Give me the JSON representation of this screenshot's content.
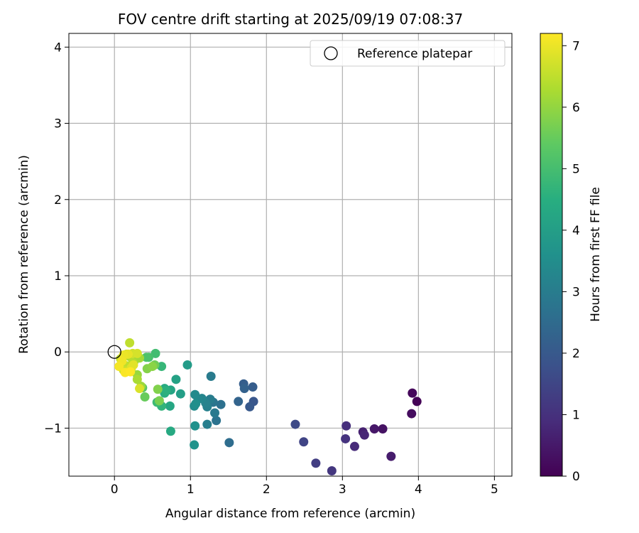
{
  "chart_data": {
    "type": "scatter",
    "title": "FOV centre drift starting at 2025/09/19 07:08:37",
    "xlabel": "Angular distance from reference (arcmin)",
    "ylabel": "Rotation from reference (arcmin)",
    "xlim": [
      -0.6,
      5.23
    ],
    "ylim": [
      -1.63,
      4.18
    ],
    "xticks": [
      "0",
      "1",
      "2",
      "3",
      "4",
      "5"
    ],
    "xtick_values": [
      0,
      1,
      2,
      3,
      4,
      5
    ],
    "yticks": [
      "−1",
      "0",
      "1",
      "2",
      "3",
      "4"
    ],
    "ytick_values": [
      -1,
      0,
      1,
      2,
      3,
      4
    ],
    "grid": true,
    "legend": {
      "position": "top-right",
      "entries": [
        {
          "label": "Reference platepar",
          "marker": "open-circle"
        }
      ]
    },
    "reference_point": {
      "x": 0,
      "y": 0
    },
    "colorbar": {
      "label": "Hours from first FF file",
      "range": [
        0,
        7.2
      ],
      "ticks": [
        "0",
        "1",
        "2",
        "3",
        "4",
        "5",
        "6",
        "7"
      ],
      "tick_values": [
        0,
        1,
        2,
        3,
        4,
        5,
        6,
        7
      ],
      "colormap": "viridis"
    },
    "series": [
      {
        "x": [
          3.98,
          3.92,
          3.91,
          3.53,
          3.42,
          3.64,
          3.27,
          3.29,
          3.16,
          3.05,
          3.04,
          2.86,
          2.65,
          2.49,
          2.38,
          1.83,
          1.78,
          1.82,
          1.7,
          1.71,
          1.63,
          1.51,
          1.4,
          1.34,
          1.3,
          1.32,
          1.27,
          1.26,
          1.22,
          1.22,
          1.2,
          1.15,
          1.1,
          1.06,
          1.05,
          1.07,
          1.06,
          1.05,
          0.96,
          0.87,
          0.81,
          0.74,
          0.73,
          0.74,
          0.66,
          0.66,
          0.68,
          0.62,
          0.62,
          0.56,
          0.54,
          0.45,
          0.42,
          0.37,
          0.4,
          0.53,
          0.59,
          0.57,
          0.43,
          0.5,
          0.26,
          0.3,
          0.35,
          0.33,
          0.3,
          0.2,
          0.22,
          0.24,
          0.13,
          0.15,
          0.08,
          0.12,
          0.16,
          0.24,
          0.3,
          0.33,
          0.2,
          0.22,
          0.25,
          0.18,
          0.12,
          0.1,
          0.06,
          0.14,
          0.21
        ],
        "y": [
          -0.65,
          -0.54,
          -0.81,
          -1.01,
          -1.01,
          -1.37,
          -1.05,
          -1.09,
          -1.24,
          -0.97,
          -1.14,
          -1.56,
          -1.46,
          -1.18,
          -0.95,
          -0.65,
          -0.72,
          -0.46,
          -0.42,
          -0.48,
          -0.65,
          -1.19,
          -0.69,
          -0.9,
          -0.66,
          -0.8,
          -0.32,
          -0.62,
          -0.95,
          -0.72,
          -0.67,
          -0.61,
          -0.62,
          -0.56,
          -0.71,
          -0.68,
          -0.97,
          -1.22,
          -0.17,
          -0.55,
          -0.36,
          -0.5,
          -0.71,
          -1.04,
          -0.48,
          -0.54,
          -0.51,
          -0.71,
          -0.19,
          -0.66,
          -0.02,
          -0.07,
          -0.07,
          -0.47,
          -0.59,
          -0.17,
          -0.64,
          -0.49,
          -0.22,
          -0.19,
          -0.12,
          -0.3,
          -0.45,
          -0.08,
          -0.36,
          -0.06,
          -0.22,
          -0.14,
          -0.05,
          -0.18,
          -0.09,
          -0.24,
          -0.03,
          -0.02,
          -0.02,
          -0.48,
          0.12,
          -0.21,
          -0.17,
          -0.03,
          -0.04,
          -0.12,
          -0.19,
          -0.27,
          -0.26
        ],
        "hours": [
          0.05,
          0.15,
          0.25,
          0.35,
          0.45,
          0.55,
          0.65,
          0.75,
          0.85,
          0.95,
          1.05,
          1.15,
          1.3,
          1.45,
          1.6,
          1.95,
          2.0,
          2.1,
          2.15,
          2.25,
          2.3,
          2.55,
          2.65,
          2.7,
          2.8,
          2.9,
          2.95,
          3.0,
          3.05,
          3.1,
          3.15,
          3.25,
          3.3,
          3.4,
          3.45,
          3.55,
          3.6,
          3.65,
          3.9,
          4.0,
          4.1,
          4.2,
          4.25,
          4.35,
          4.4,
          4.5,
          4.55,
          4.65,
          4.75,
          4.85,
          4.95,
          5.05,
          5.15,
          5.3,
          5.5,
          5.6,
          5.7,
          5.8,
          5.85,
          5.9,
          6.0,
          6.05,
          6.1,
          6.2,
          6.25,
          6.3,
          6.35,
          6.4,
          6.45,
          6.5,
          6.55,
          6.6,
          6.65,
          6.7,
          6.75,
          6.8,
          6.5,
          6.85,
          6.9,
          6.95,
          7.0,
          7.05,
          7.1,
          7.15,
          7.2
        ]
      }
    ]
  }
}
